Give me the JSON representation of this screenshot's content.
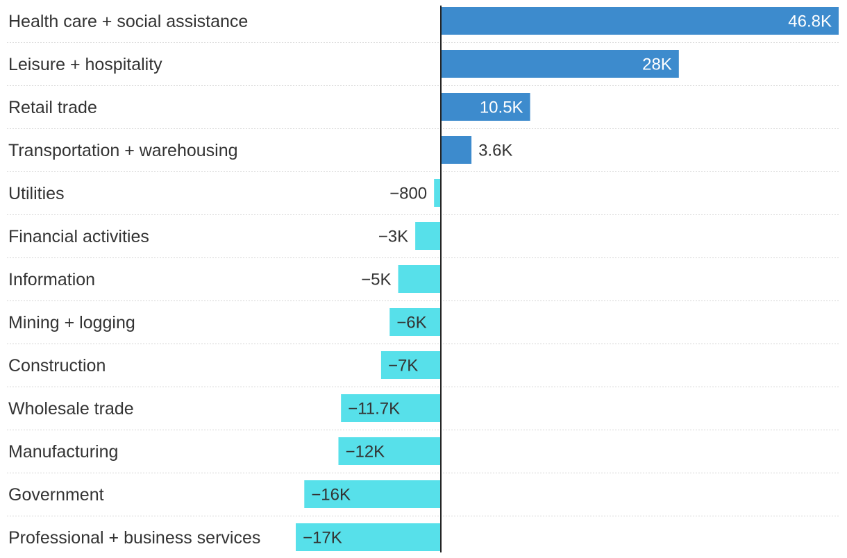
{
  "chart_data": {
    "type": "bar",
    "orientation": "horizontal",
    "title": "",
    "xlabel": "",
    "ylabel": "",
    "xlim": [
      -17000,
      46800
    ],
    "grid": true,
    "categories": [
      "Health care + social assistance",
      "Leisure + hospitality",
      "Retail trade",
      "Transportation + warehousing",
      "Utilities",
      "Financial activities",
      "Information",
      "Mining + logging",
      "Construction",
      "Wholesale trade",
      "Manufacturing",
      "Government",
      "Professional + business services"
    ],
    "values": [
      46800,
      28000,
      10500,
      3600,
      -800,
      -3000,
      -5000,
      -6000,
      -7000,
      -11700,
      -12000,
      -16000,
      -17000
    ],
    "value_labels": [
      "46.8K",
      "28K",
      "10.5K",
      "3.6K",
      "−800",
      "−3K",
      "−5K",
      "−6K",
      "−7K",
      "−11.7K",
      "−12K",
      "−16K",
      "−17K"
    ],
    "colors": {
      "positive": "#3d8bcd",
      "negative": "#57e0ea",
      "text_dark": "#333333",
      "text_light": "#ffffff"
    }
  }
}
